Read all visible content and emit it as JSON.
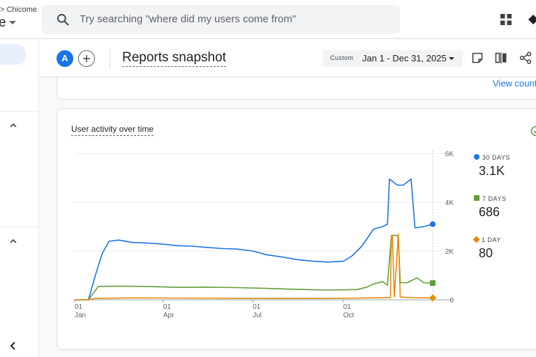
{
  "topbar": {
    "breadcrumb": "> Chicome",
    "property_name": "e",
    "search_placeholder": "Try searching \"where did my users come from\""
  },
  "report": {
    "avatar_letter": "A",
    "title": "Reports snapshot",
    "date_label": "Custom",
    "date_range": "Jan 1 - Dec 31, 2025"
  },
  "previous_card": {
    "link": "View count"
  },
  "card": {
    "title": "User activity over time",
    "legend": [
      {
        "label": "30 DAYS",
        "value": "3.1K",
        "color": "#1a73e8"
      },
      {
        "label": "7 DAYS",
        "value": "686",
        "color": "#5f9e3a"
      },
      {
        "label": "1 DAY",
        "value": "80",
        "color": "#e8890c"
      }
    ]
  },
  "chart_data": {
    "type": "line",
    "title": "User activity over time",
    "x_tick_labels": [
      {
        "day": "01",
        "month": "Jan"
      },
      {
        "day": "01",
        "month": "Apr"
      },
      {
        "day": "01",
        "month": "Jul"
      },
      {
        "day": "01",
        "month": "Oct"
      }
    ],
    "y_tick_labels": [
      "0",
      "2K",
      "4K",
      "6K"
    ],
    "ylim": [
      0,
      6000
    ],
    "x_domain": [
      "2025-01-01",
      "2025-12-31"
    ],
    "y_axis_position": "right",
    "grid": true,
    "legend_position": "right",
    "series": [
      {
        "name": "30 DAYS",
        "color": "#1a73e8",
        "points": [
          [
            "2025-01-01",
            0
          ],
          [
            "2025-01-08",
            0
          ],
          [
            "2025-01-15",
            0
          ],
          [
            "2025-01-22",
            1000
          ],
          [
            "2025-01-29",
            1900
          ],
          [
            "2025-02-05",
            2400
          ],
          [
            "2025-02-15",
            2450
          ],
          [
            "2025-03-01",
            2350
          ],
          [
            "2025-03-15",
            2330
          ],
          [
            "2025-04-01",
            2280
          ],
          [
            "2025-04-15",
            2220
          ],
          [
            "2025-05-01",
            2200
          ],
          [
            "2025-05-15",
            2150
          ],
          [
            "2025-06-01",
            2100
          ],
          [
            "2025-06-15",
            2080
          ],
          [
            "2025-07-01",
            2000
          ],
          [
            "2025-07-15",
            1850
          ],
          [
            "2025-08-01",
            1750
          ],
          [
            "2025-08-15",
            1650
          ],
          [
            "2025-09-01",
            1580
          ],
          [
            "2025-09-15",
            1550
          ],
          [
            "2025-10-01",
            1580
          ],
          [
            "2025-10-10",
            1800
          ],
          [
            "2025-10-20",
            2200
          ],
          [
            "2025-11-01",
            2900
          ],
          [
            "2025-11-10",
            3000
          ],
          [
            "2025-11-15",
            3100
          ],
          [
            "2025-11-17",
            4950
          ],
          [
            "2025-11-25",
            4700
          ],
          [
            "2025-12-01",
            4700
          ],
          [
            "2025-12-09",
            4950
          ],
          [
            "2025-12-13",
            2950
          ],
          [
            "2025-12-22",
            3000
          ],
          [
            "2025-12-31",
            3100
          ]
        ]
      },
      {
        "name": "7 DAYS",
        "color": "#5f9e3a",
        "points": [
          [
            "2025-01-01",
            0
          ],
          [
            "2025-01-08",
            0
          ],
          [
            "2025-01-15",
            0
          ],
          [
            "2025-01-25",
            550
          ],
          [
            "2025-02-15",
            560
          ],
          [
            "2025-03-15",
            550
          ],
          [
            "2025-04-15",
            510
          ],
          [
            "2025-05-15",
            520
          ],
          [
            "2025-06-15",
            500
          ],
          [
            "2025-07-15",
            470
          ],
          [
            "2025-08-15",
            430
          ],
          [
            "2025-09-15",
            400
          ],
          [
            "2025-10-15",
            420
          ],
          [
            "2025-10-25",
            520
          ],
          [
            "2025-11-01",
            650
          ],
          [
            "2025-11-10",
            750
          ],
          [
            "2025-11-15",
            600
          ],
          [
            "2025-11-19",
            2630
          ],
          [
            "2025-11-23",
            2650
          ],
          [
            "2025-11-26",
            2600
          ],
          [
            "2025-11-28",
            700
          ],
          [
            "2025-12-05",
            700
          ],
          [
            "2025-12-15",
            900
          ],
          [
            "2025-12-22",
            700
          ],
          [
            "2025-12-31",
            686
          ]
        ]
      },
      {
        "name": "1 DAY",
        "color": "#e8890c",
        "points": [
          [
            "2025-01-01",
            0
          ],
          [
            "2025-01-08",
            0
          ],
          [
            "2025-01-15",
            0
          ],
          [
            "2025-01-22",
            60
          ],
          [
            "2025-03-01",
            80
          ],
          [
            "2025-05-01",
            70
          ],
          [
            "2025-07-01",
            60
          ],
          [
            "2025-09-01",
            55
          ],
          [
            "2025-10-15",
            70
          ],
          [
            "2025-11-10",
            90
          ],
          [
            "2025-11-18",
            90
          ],
          [
            "2025-11-19",
            2650
          ],
          [
            "2025-11-20",
            2600
          ],
          [
            "2025-11-22",
            120
          ],
          [
            "2025-11-26",
            2700
          ],
          [
            "2025-11-28",
            110
          ],
          [
            "2025-12-10",
            90
          ],
          [
            "2025-12-31",
            80
          ]
        ]
      }
    ]
  }
}
